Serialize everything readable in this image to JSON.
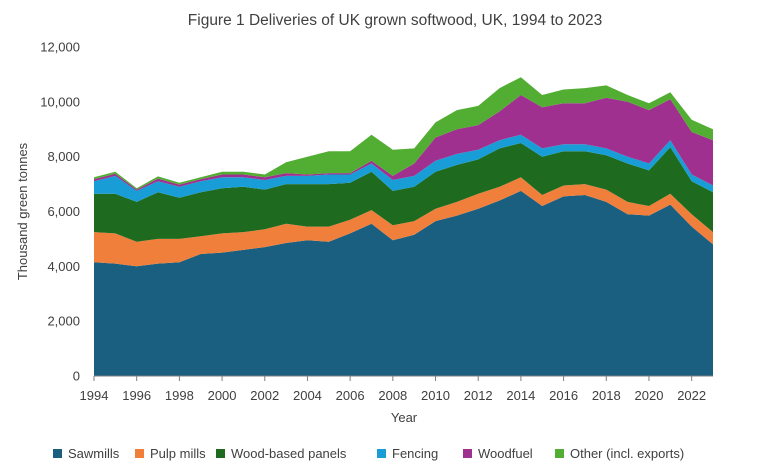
{
  "chart_data": {
    "type": "area",
    "stacked": true,
    "title": "Figure 1 Deliveries of UK grown softwood, UK, 1994 to 2023",
    "xlabel": "Year",
    "ylabel": "Thousand green tonnes",
    "ylim": [
      0,
      12000
    ],
    "yticks": [
      0,
      2000,
      4000,
      6000,
      8000,
      10000,
      12000
    ],
    "ytick_labels": [
      "0",
      "2,000",
      "4,000",
      "6,000",
      "8,000",
      "10,000",
      "12,000"
    ],
    "xticks": [
      1994,
      1996,
      1998,
      2000,
      2002,
      2004,
      2006,
      2008,
      2010,
      2012,
      2014,
      2016,
      2018,
      2020,
      2022
    ],
    "xtick_labels": [
      "1994",
      "1996",
      "1998",
      "2000",
      "2002",
      "2004",
      "2006",
      "2008",
      "2010",
      "2012",
      "2014",
      "2016",
      "2018",
      "2020",
      "2022"
    ],
    "grid": false,
    "legend": "bottom",
    "x": [
      1994,
      1995,
      1996,
      1997,
      1998,
      1999,
      2000,
      2001,
      2002,
      2003,
      2004,
      2005,
      2006,
      2007,
      2008,
      2009,
      2010,
      2011,
      2012,
      2013,
      2014,
      2015,
      2016,
      2017,
      2018,
      2019,
      2020,
      2021,
      2022,
      2023
    ],
    "series": [
      {
        "name": "Sawmills",
        "color": "#1a5f7f",
        "values": [
          4150,
          4100,
          4000,
          4100,
          4150,
          4450,
          4500,
          4600,
          4700,
          4850,
          4950,
          4900,
          5200,
          5550,
          4950,
          5150,
          5650,
          5850,
          6100,
          6400,
          6750,
          6200,
          6550,
          6600,
          6350,
          5900,
          5850,
          6250,
          5450,
          4800
        ]
      },
      {
        "name": "Pulp mills",
        "color": "#f07f3c",
        "values": [
          1100,
          1100,
          900,
          900,
          850,
          650,
          700,
          650,
          650,
          700,
          500,
          550,
          500,
          500,
          550,
          500,
          450,
          500,
          550,
          500,
          500,
          400,
          400,
          400,
          450,
          450,
          350,
          400,
          450,
          450
        ]
      },
      {
        "name": "Wood-based panels",
        "color": "#1e6b20",
        "values": [
          1400,
          1450,
          1450,
          1700,
          1500,
          1600,
          1650,
          1650,
          1450,
          1450,
          1550,
          1550,
          1350,
          1400,
          1250,
          1250,
          1350,
          1350,
          1250,
          1400,
          1250,
          1400,
          1250,
          1200,
          1250,
          1400,
          1300,
          1700,
          1200,
          1450
        ]
      },
      {
        "name": "Fencing",
        "color": "#199dd6",
        "values": [
          450,
          650,
          400,
          400,
          400,
          400,
          400,
          350,
          350,
          300,
          300,
          350,
          300,
          300,
          400,
          400,
          400,
          400,
          350,
          300,
          300,
          300,
          250,
          250,
          250,
          250,
          250,
          250,
          250,
          250
        ]
      },
      {
        "name": "Woodfuel",
        "color": "#a0308f",
        "values": [
          80,
          80,
          50,
          100,
          80,
          80,
          100,
          100,
          100,
          100,
          50,
          50,
          50,
          100,
          150,
          450,
          850,
          900,
          900,
          1050,
          1450,
          1500,
          1500,
          1500,
          1850,
          2000,
          1950,
          1500,
          1550,
          1650
        ]
      },
      {
        "name": "Other (incl. exports)",
        "color": "#52ae32",
        "values": [
          70,
          70,
          50,
          80,
          70,
          70,
          100,
          100,
          100,
          400,
          650,
          800,
          800,
          950,
          950,
          550,
          550,
          700,
          700,
          850,
          650,
          450,
          500,
          550,
          450,
          250,
          250,
          250,
          450,
          400
        ]
      }
    ]
  }
}
